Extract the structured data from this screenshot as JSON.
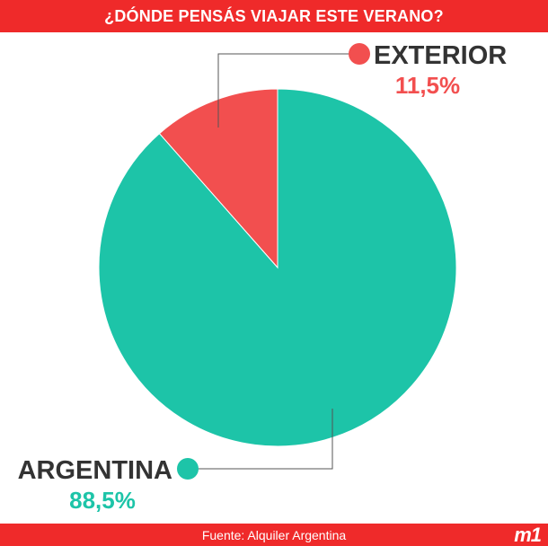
{
  "header": {
    "title": "¿DÓNDE PENSÁS VIAJAR ESTE VERANO?"
  },
  "footer": {
    "source": "Fuente: Alquiler Argentina",
    "logo": "m1"
  },
  "colors": {
    "brand": "#ef2a2a",
    "exterior": "#f24f4f",
    "argentina": "#1dc4a8",
    "label_text": "#333333"
  },
  "chart_data": {
    "type": "pie",
    "title": "¿DÓNDE PENSÁS VIAJAR ESTE VERANO?",
    "slices": [
      {
        "label": "EXTERIOR",
        "value": 11.5,
        "value_label": "11,5%",
        "color": "#f24f4f"
      },
      {
        "label": "ARGENTINA",
        "value": 88.5,
        "value_label": "88,5%",
        "color": "#1dc4a8"
      }
    ]
  }
}
